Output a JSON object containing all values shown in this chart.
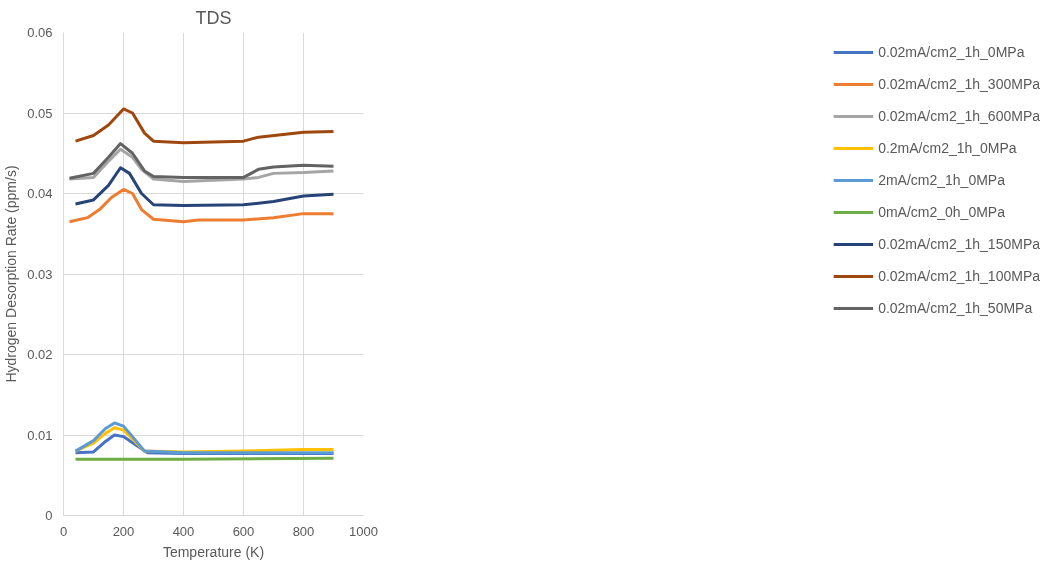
{
  "chart_data": {
    "type": "line",
    "title": "TDS",
    "xlabel": "Temperature (K)",
    "ylabel": "Hydrogen Desorption Rate (ppm/s)",
    "xlim": [
      0,
      1000
    ],
    "xticks": [
      0,
      200,
      400,
      600,
      800,
      1000
    ],
    "ylim": [
      0,
      0.06
    ],
    "yticks": [
      0,
      0.01,
      0.02,
      0.03,
      0.04,
      0.05,
      0.06
    ],
    "grid": true,
    "legend": "right",
    "marker": "none",
    "line_style": "solid",
    "series": [
      {
        "name": "0.02mA/cm2_1h_0MPa",
        "color": "#4472c4",
        "x": [
          40,
          100,
          140,
          170,
          200,
          240,
          280,
          400,
          600,
          900
        ],
        "values": [
          0.0078,
          0.0079,
          0.0092,
          0.01,
          0.0098,
          0.0088,
          0.0078,
          0.0077,
          0.0077,
          0.0077
        ]
      },
      {
        "name": "0.02mA/cm2_1h_300MPa",
        "color": "#ed7d31",
        "x": [
          20,
          80,
          120,
          160,
          200,
          230,
          260,
          300,
          400,
          450,
          600,
          700,
          800,
          900
        ],
        "values": [
          0.0365,
          0.037,
          0.038,
          0.0395,
          0.0405,
          0.04,
          0.038,
          0.0368,
          0.0365,
          0.0367,
          0.0367,
          0.037,
          0.0375,
          0.0375
        ]
      },
      {
        "name": "0.02mA/cm2_1h_600MPa",
        "color": "#a5a5a5",
        "x": [
          20,
          100,
          150,
          190,
          230,
          260,
          300,
          400,
          600,
          650,
          700,
          800,
          900
        ],
        "values": [
          0.0418,
          0.042,
          0.044,
          0.0455,
          0.0445,
          0.043,
          0.0418,
          0.0415,
          0.0418,
          0.042,
          0.0425,
          0.0426,
          0.0428
        ]
      },
      {
        "name": "0.2mA/cm2_1h_0MPa",
        "color": "#ffc000",
        "x": [
          40,
          100,
          140,
          170,
          200,
          230,
          270,
          400,
          600,
          800,
          900
        ],
        "values": [
          0.008,
          0.009,
          0.0102,
          0.0109,
          0.0106,
          0.0095,
          0.008,
          0.0079,
          0.008,
          0.0082,
          0.0082
        ]
      },
      {
        "name": "2mA/cm2_1h_0MPa",
        "color": "#5b9bd5",
        "x": [
          40,
          100,
          140,
          170,
          200,
          230,
          270,
          400,
          900
        ],
        "values": [
          0.008,
          0.0093,
          0.0108,
          0.0115,
          0.0111,
          0.0098,
          0.008,
          0.0078,
          0.0078
        ]
      },
      {
        "name": "0mA/cm2_0h_0MPa",
        "color": "#70ad47",
        "x": [
          40,
          400,
          900
        ],
        "values": [
          0.007,
          0.007,
          0.0071
        ]
      },
      {
        "name": "0.02mA/cm2_1h_150MPa",
        "color": "#264478",
        "x": [
          40,
          100,
          150,
          190,
          220,
          260,
          300,
          400,
          600,
          700,
          800,
          900
        ],
        "values": [
          0.0387,
          0.0392,
          0.041,
          0.0432,
          0.0425,
          0.04,
          0.0386,
          0.0385,
          0.0386,
          0.039,
          0.0397,
          0.0399
        ]
      },
      {
        "name": "0.02mA/cm2_1h_100MPa",
        "color": "#9e480e",
        "x": [
          40,
          100,
          150,
          200,
          230,
          270,
          300,
          400,
          600,
          650,
          800,
          900
        ],
        "values": [
          0.0465,
          0.0472,
          0.0485,
          0.0505,
          0.05,
          0.0475,
          0.0465,
          0.0463,
          0.0465,
          0.047,
          0.0476,
          0.0477
        ]
      },
      {
        "name": "0.02mA/cm2_1h_50MPa",
        "color": "#636363",
        "x": [
          20,
          100,
          150,
          190,
          230,
          270,
          300,
          400,
          600,
          650,
          700,
          800,
          900
        ],
        "values": [
          0.0419,
          0.0425,
          0.0445,
          0.0462,
          0.045,
          0.0428,
          0.0421,
          0.042,
          0.042,
          0.043,
          0.0433,
          0.0435,
          0.0434
        ]
      }
    ]
  }
}
